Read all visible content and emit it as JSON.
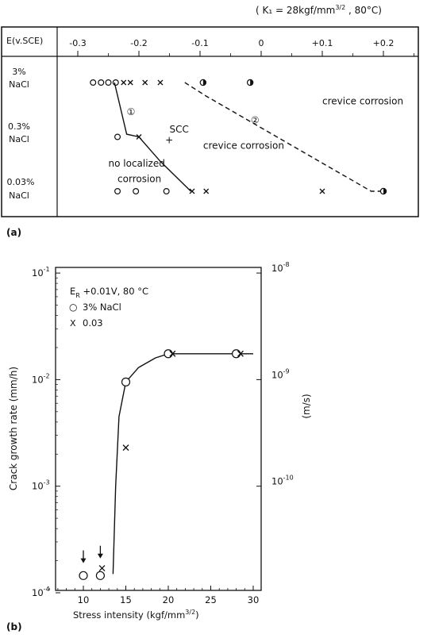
{
  "chart_data": [
    {
      "type": "scatter",
      "panel_label": "(a)",
      "condition": "( K₁ = 28kgf/mm",
      "condition_exp": "3/2",
      "condition_tail": " , 80°C)",
      "row_header": "E(v.SCE)",
      "xlim": [
        -0.35,
        0.25
      ],
      "x_ticks": [
        -0.3,
        -0.2,
        -0.1,
        0,
        0.1,
        0.2
      ],
      "x_tick_labels": [
        "-0.3",
        "-0.2",
        "-0.1",
        "0",
        "+0.1",
        "+0.2"
      ],
      "rows": [
        {
          "label_line1": "3%",
          "label_line2": "NaCl"
        },
        {
          "label_line1": "0.3%",
          "label_line2": "NaCl"
        },
        {
          "label_line1": "0.03%",
          "label_line2": "NaCl"
        }
      ],
      "points": [
        {
          "row": 0,
          "x": -0.275,
          "marker": "o"
        },
        {
          "row": 0,
          "x": -0.262,
          "marker": "o"
        },
        {
          "row": 0,
          "x": -0.25,
          "marker": "o"
        },
        {
          "row": 0,
          "x": -0.238,
          "marker": "o"
        },
        {
          "row": 0,
          "x": -0.225,
          "marker": "x"
        },
        {
          "row": 0,
          "x": -0.214,
          "marker": "x"
        },
        {
          "row": 0,
          "x": -0.19,
          "marker": "x"
        },
        {
          "row": 0,
          "x": -0.165,
          "marker": "x"
        },
        {
          "row": 0,
          "x": -0.095,
          "marker": "half"
        },
        {
          "row": 0,
          "x": -0.018,
          "marker": "half"
        },
        {
          "row": 1,
          "x": -0.235,
          "marker": "o"
        },
        {
          "row": 1,
          "x": -0.2,
          "marker": "x"
        },
        {
          "row": 2,
          "x": -0.235,
          "marker": "o"
        },
        {
          "row": 2,
          "x": -0.205,
          "marker": "o"
        },
        {
          "row": 2,
          "x": -0.155,
          "marker": "o"
        },
        {
          "row": 2,
          "x": -0.113,
          "marker": "x"
        },
        {
          "row": 2,
          "x": -0.09,
          "marker": "x"
        },
        {
          "row": 2,
          "x": 0.1,
          "marker": "x"
        },
        {
          "row": 2,
          "x": 0.2,
          "marker": "half"
        }
      ],
      "boundary_lines": [
        {
          "id": "1",
          "style": "solid",
          "points": [
            [
              -0.24,
              0
            ],
            [
              -0.22,
              0.95
            ],
            [
              -0.2,
              1.0
            ],
            [
              -0.165,
              1.45
            ],
            [
              -0.115,
              2.0
            ]
          ]
        },
        {
          "id": "2",
          "style": "dashed",
          "points": [
            [
              -0.125,
              0
            ],
            [
              -0.09,
              0.25
            ],
            [
              0.18,
              2.0
            ],
            [
              0.2,
              2.0
            ]
          ]
        }
      ],
      "annotations": [
        {
          "text": "①",
          "x": -0.22,
          "row": 0.6
        },
        {
          "text": "②",
          "x": -0.017,
          "row": 0.75
        },
        {
          "text": "SCC",
          "x": -0.15,
          "row": 0.92
        },
        {
          "text": "+",
          "x": -0.157,
          "row": 1.12
        },
        {
          "text": "crevice corrosion",
          "x": -0.095,
          "row": 1.22
        },
        {
          "text": "crevice corrosion",
          "x": 0.1,
          "row": 0.4
        },
        {
          "text": "no localized",
          "x": -0.25,
          "row": 1.55
        },
        {
          "text": "corrosion",
          "x": -0.235,
          "row": 1.83
        }
      ]
    },
    {
      "type": "scatter",
      "panel_label": "(b)",
      "yscale": "log",
      "xlim": [
        5,
        31
      ],
      "ylim": [
        0.0001,
        0.1
      ],
      "x_ticks": [
        10,
        15,
        20,
        25,
        30
      ],
      "x_tick_labels": [
        "10",
        "15",
        "20",
        "25",
        "30"
      ],
      "y_ticks": [
        0.0001,
        0.001,
        0.01,
        0.1
      ],
      "y_tick_labels": [
        {
          "base": "10",
          "exp": "-4"
        },
        {
          "base": "10",
          "exp": "-3"
        },
        {
          "base": "10",
          "exp": "-2"
        },
        {
          "base": "10",
          "exp": "-1"
        }
      ],
      "y2_ticks": [
        2.778e-10,
        2.778e-09,
        2.778e-08
      ],
      "y2_tick_labels": [
        {
          "base": "10",
          "exp": "-10"
        },
        {
          "base": "10",
          "exp": "-9"
        },
        {
          "base": "10",
          "exp": "-8"
        }
      ],
      "xlabel": "Stress  intensity  (kgf/mm",
      "xlabel_exp": "3/2",
      "xlabel_tail": ")",
      "ylabel": "Crack  growth  rate  (mm/h)",
      "y2label": "(m/s)",
      "legend": {
        "line1_prefix": "E",
        "line1_sub": "R",
        "line1_rest": " +0.01V, 80 °C",
        "o_label": "3% NaCl",
        "x_label": "0.03",
        "o_symbol": "○",
        "x_symbol": "X"
      },
      "series": [
        {
          "marker": "o",
          "points": [
            [
              10,
              0.000145
            ],
            [
              12,
              0.000145
            ],
            [
              15,
              0.0095
            ],
            [
              20,
              0.0175
            ],
            [
              28,
              0.0175
            ]
          ]
        },
        {
          "marker": "x",
          "points": [
            [
              12.2,
              0.00017
            ],
            [
              15,
              0.0023
            ],
            [
              20.5,
              0.0175
            ],
            [
              28.5,
              0.0175
            ]
          ]
        }
      ],
      "arrows": [
        [
          10,
          0.00019
        ],
        [
          12,
          0.00021
        ]
      ],
      "curve": [
        [
          13.5,
          0.00015
        ],
        [
          13.8,
          0.001
        ],
        [
          14.2,
          0.0045
        ],
        [
          15,
          0.0095
        ],
        [
          16.5,
          0.013
        ],
        [
          18.5,
          0.016
        ],
        [
          20,
          0.0175
        ],
        [
          30,
          0.0175
        ]
      ]
    }
  ]
}
